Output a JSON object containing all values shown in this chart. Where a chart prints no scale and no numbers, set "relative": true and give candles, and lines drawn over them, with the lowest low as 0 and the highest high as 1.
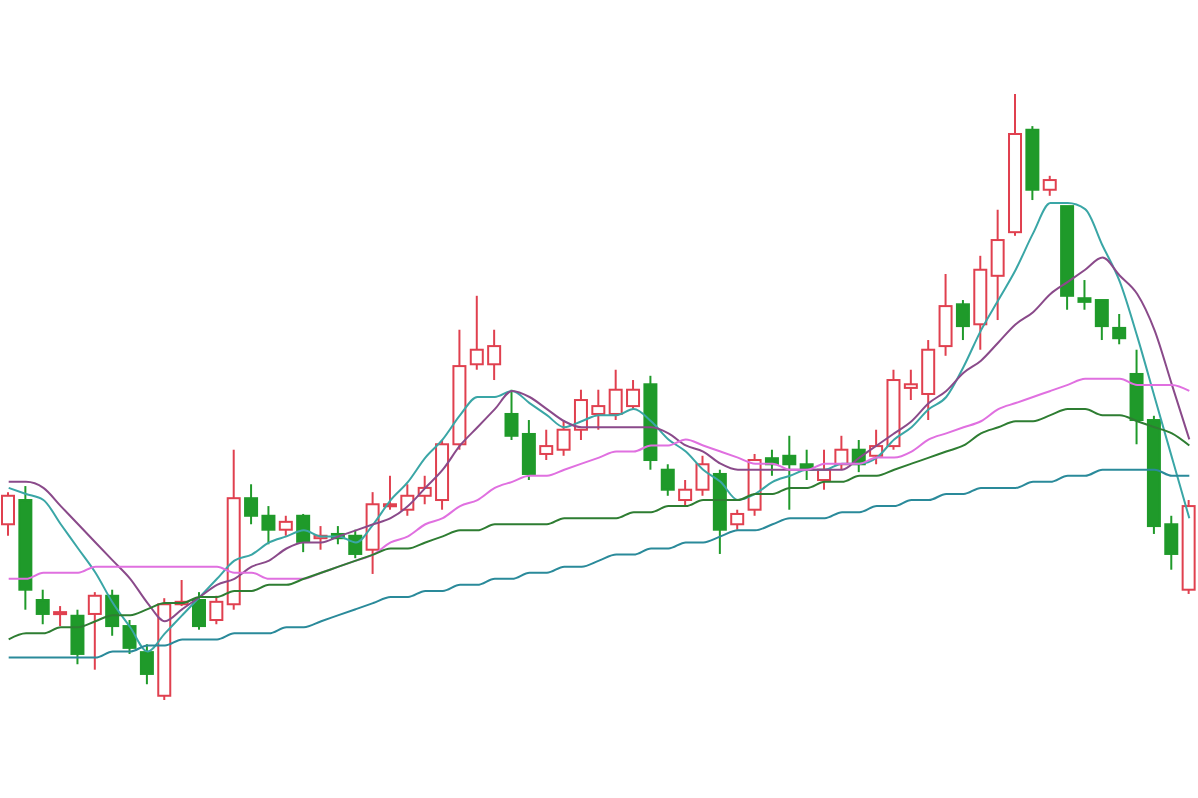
{
  "chart_data": {
    "type": "candlestick",
    "relative": true,
    "categories": [
      null,
      null,
      null,
      null,
      null,
      null,
      null,
      null,
      null,
      null,
      null,
      null,
      null,
      null,
      null,
      null,
      null,
      null,
      null,
      null,
      null,
      null,
      null,
      null,
      null,
      null,
      null,
      null,
      null,
      null,
      null,
      null,
      null,
      null,
      null,
      null,
      null,
      null,
      null,
      null,
      null,
      null,
      null,
      null,
      null,
      null,
      null,
      null,
      null,
      null,
      null,
      null,
      null,
      null,
      null,
      null,
      null,
      null,
      null,
      null,
      null,
      null,
      null,
      null,
      null,
      null,
      null,
      null,
      null
    ],
    "ohlc": [
      [
        0.29,
        0.343,
        0.271,
        0.337
      ],
      [
        0.33,
        0.353,
        0.149,
        0.182
      ],
      [
        0.165,
        0.182,
        0.125,
        0.142
      ],
      [
        0.142,
        0.155,
        0.122,
        0.145
      ],
      [
        0.139,
        0.149,
        0.059,
        0.076
      ],
      [
        0.142,
        0.178,
        0.05,
        0.172
      ],
      [
        0.172,
        0.182,
        0.106,
        0.122
      ],
      [
        0.122,
        0.132,
        0.076,
        0.086
      ],
      [
        0.079,
        0.092,
        0.026,
        0.043
      ],
      [
        0.007,
        0.168,
        0,
        0.158
      ],
      [
        0.158,
        0.198,
        0.155,
        0.162
      ],
      [
        0.165,
        0.178,
        0.116,
        0.122
      ],
      [
        0.132,
        0.172,
        0.125,
        0.162
      ],
      [
        0.158,
        0.413,
        0.149,
        0.333
      ],
      [
        0.333,
        0.356,
        0.29,
        0.304
      ],
      [
        0.304,
        0.32,
        0.257,
        0.281
      ],
      [
        0.281,
        0.304,
        0.271,
        0.294
      ],
      [
        0.304,
        0.307,
        0.244,
        0.261
      ],
      [
        0.267,
        0.287,
        0.248,
        0.271
      ],
      [
        0.274,
        0.287,
        0.257,
        0.267
      ],
      [
        0.271,
        0.281,
        0.234,
        0.241
      ],
      [
        0.248,
        0.343,
        0.208,
        0.323
      ],
      [
        0.32,
        0.37,
        0.314,
        0.323
      ],
      [
        0.314,
        0.356,
        0.304,
        0.337
      ],
      [
        0.337,
        0.37,
        0.323,
        0.35
      ],
      [
        0.33,
        0.429,
        0.314,
        0.422
      ],
      [
        0.422,
        0.611,
        0.413,
        0.551
      ],
      [
        0.554,
        0.667,
        0.545,
        0.578
      ],
      [
        0.554,
        0.611,
        0.528,
        0.584
      ],
      [
        0.472,
        0.512,
        0.429,
        0.436
      ],
      [
        0.439,
        0.462,
        0.363,
        0.373
      ],
      [
        0.406,
        0.446,
        0.396,
        0.419
      ],
      [
        0.413,
        0.462,
        0.403,
        0.446
      ],
      [
        0.446,
        0.512,
        0.429,
        0.495
      ],
      [
        0.472,
        0.512,
        0.446,
        0.485
      ],
      [
        0.472,
        0.545,
        0.462,
        0.512
      ],
      [
        0.485,
        0.528,
        0.479,
        0.512
      ],
      [
        0.521,
        0.535,
        0.38,
        0.396
      ],
      [
        0.38,
        0.389,
        0.337,
        0.347
      ],
      [
        0.33,
        0.363,
        0.32,
        0.347
      ],
      [
        0.347,
        0.403,
        0.337,
        0.389
      ],
      [
        0.373,
        0.38,
        0.241,
        0.281
      ],
      [
        0.29,
        0.314,
        0.281,
        0.307
      ],
      [
        0.314,
        0.406,
        0.304,
        0.396
      ],
      [
        0.399,
        0.413,
        0.37,
        0.389
      ],
      [
        0.403,
        0.436,
        0.314,
        0.389
      ],
      [
        0.389,
        0.413,
        0.363,
        0.38
      ],
      [
        0.363,
        0.413,
        0.347,
        0.38
      ],
      [
        0.389,
        0.436,
        0.38,
        0.413
      ],
      [
        0.413,
        0.429,
        0.376,
        0.389
      ],
      [
        0.403,
        0.446,
        0.389,
        0.419
      ],
      [
        0.419,
        0.545,
        0.413,
        0.528
      ],
      [
        0.515,
        0.545,
        0.495,
        0.521
      ],
      [
        0.505,
        0.594,
        0.462,
        0.578
      ],
      [
        0.584,
        0.703,
        0.568,
        0.65
      ],
      [
        0.653,
        0.66,
        0.594,
        0.617
      ],
      [
        0.62,
        0.733,
        0.578,
        0.71
      ],
      [
        0.7,
        0.809,
        0.627,
        0.759
      ],
      [
        0.772,
        1,
        0.766,
        0.934
      ],
      [
        0.941,
        0.947,
        0.825,
        0.842
      ],
      [
        0.842,
        0.865,
        0.832,
        0.858
      ],
      [
        0.815,
        0.815,
        0.644,
        0.667
      ],
      [
        0.663,
        0.693,
        0.644,
        0.657
      ],
      [
        0.66,
        0.66,
        0.594,
        0.617
      ],
      [
        0.614,
        0.637,
        0.587,
        0.597
      ],
      [
        0.538,
        0.578,
        0.422,
        0.462
      ],
      [
        0.462,
        0.469,
        0.274,
        0.287
      ],
      [
        0.29,
        0.304,
        0.215,
        0.241
      ],
      [
        0.182,
        0.33,
        0.175,
        0.32
      ]
    ],
    "series": [
      {
        "type": "line",
        "color": "#3aa6a6",
        "values": [
          0.35,
          0.34,
          0.33,
          0.29,
          0.25,
          0.21,
          0.16,
          0.12,
          0.08,
          0.11,
          0.14,
          0.17,
          0.2,
          0.23,
          0.24,
          0.26,
          0.27,
          0.28,
          0.27,
          0.27,
          0.26,
          0.29,
          0.33,
          0.36,
          0.4,
          0.43,
          0.47,
          0.5,
          0.5,
          0.51,
          0.49,
          0.47,
          0.45,
          0.46,
          0.47,
          0.47,
          0.48,
          0.46,
          0.43,
          0.41,
          0.38,
          0.36,
          0.33,
          0.34,
          0.36,
          0.37,
          0.38,
          0.38,
          0.39,
          0.39,
          0.4,
          0.43,
          0.45,
          0.48,
          0.5,
          0.55,
          0.61,
          0.66,
          0.71,
          0.77,
          0.82,
          0.82,
          0.81,
          0.75,
          0.69,
          0.6,
          0.5,
          0.4,
          0.3
        ]
      },
      {
        "type": "line",
        "color": "#8a4a8a",
        "values": [
          0.36,
          0.36,
          0.35,
          0.32,
          0.29,
          0.26,
          0.23,
          0.2,
          0.16,
          0.13,
          0.15,
          0.17,
          0.19,
          0.2,
          0.22,
          0.23,
          0.25,
          0.26,
          0.26,
          0.27,
          0.28,
          0.29,
          0.3,
          0.32,
          0.35,
          0.38,
          0.42,
          0.45,
          0.48,
          0.51,
          0.5,
          0.48,
          0.46,
          0.45,
          0.45,
          0.45,
          0.45,
          0.45,
          0.44,
          0.42,
          0.41,
          0.39,
          0.38,
          0.38,
          0.38,
          0.38,
          0.38,
          0.38,
          0.38,
          0.4,
          0.42,
          0.44,
          0.46,
          0.49,
          0.51,
          0.54,
          0.56,
          0.59,
          0.62,
          0.64,
          0.67,
          0.69,
          0.71,
          0.73,
          0.7,
          0.67,
          0.61,
          0.52,
          0.43
        ]
      },
      {
        "type": "line",
        "color": "#e070e0",
        "values": [
          0.2,
          0.2,
          0.21,
          0.21,
          0.21,
          0.22,
          0.22,
          0.22,
          0.22,
          0.22,
          0.22,
          0.22,
          0.22,
          0.21,
          0.21,
          0.2,
          0.2,
          0.2,
          0.21,
          0.22,
          0.23,
          0.24,
          0.26,
          0.27,
          0.29,
          0.3,
          0.32,
          0.33,
          0.35,
          0.36,
          0.37,
          0.37,
          0.38,
          0.39,
          0.4,
          0.41,
          0.41,
          0.42,
          0.42,
          0.43,
          0.42,
          0.41,
          0.4,
          0.39,
          0.39,
          0.38,
          0.38,
          0.39,
          0.39,
          0.39,
          0.4,
          0.4,
          0.41,
          0.43,
          0.44,
          0.45,
          0.46,
          0.48,
          0.49,
          0.5,
          0.51,
          0.52,
          0.53,
          0.53,
          0.53,
          0.52,
          0.52,
          0.52,
          0.51
        ]
      },
      {
        "type": "line",
        "color": "#2e7d32",
        "values": [
          0.1,
          0.11,
          0.11,
          0.12,
          0.12,
          0.13,
          0.14,
          0.14,
          0.15,
          0.16,
          0.16,
          0.17,
          0.17,
          0.18,
          0.18,
          0.19,
          0.19,
          0.2,
          0.21,
          0.22,
          0.23,
          0.24,
          0.25,
          0.25,
          0.26,
          0.27,
          0.28,
          0.28,
          0.29,
          0.29,
          0.29,
          0.29,
          0.3,
          0.3,
          0.3,
          0.3,
          0.31,
          0.31,
          0.32,
          0.32,
          0.33,
          0.33,
          0.33,
          0.34,
          0.34,
          0.35,
          0.35,
          0.36,
          0.36,
          0.37,
          0.37,
          0.38,
          0.39,
          0.4,
          0.41,
          0.42,
          0.44,
          0.45,
          0.46,
          0.46,
          0.47,
          0.48,
          0.48,
          0.47,
          0.47,
          0.46,
          0.45,
          0.44,
          0.42
        ]
      },
      {
        "type": "line",
        "color": "#2a8a9a",
        "values": [
          0.07,
          0.07,
          0.07,
          0.07,
          0.07,
          0.07,
          0.08,
          0.08,
          0.09,
          0.09,
          0.1,
          0.1,
          0.1,
          0.11,
          0.11,
          0.11,
          0.12,
          0.12,
          0.13,
          0.14,
          0.15,
          0.16,
          0.17,
          0.17,
          0.18,
          0.18,
          0.19,
          0.19,
          0.2,
          0.2,
          0.21,
          0.21,
          0.22,
          0.22,
          0.23,
          0.24,
          0.24,
          0.25,
          0.25,
          0.26,
          0.26,
          0.27,
          0.28,
          0.28,
          0.29,
          0.3,
          0.3,
          0.3,
          0.31,
          0.31,
          0.32,
          0.32,
          0.33,
          0.33,
          0.34,
          0.34,
          0.35,
          0.35,
          0.35,
          0.36,
          0.36,
          0.37,
          0.37,
          0.38,
          0.38,
          0.38,
          0.38,
          0.37,
          0.37
        ]
      }
    ]
  }
}
